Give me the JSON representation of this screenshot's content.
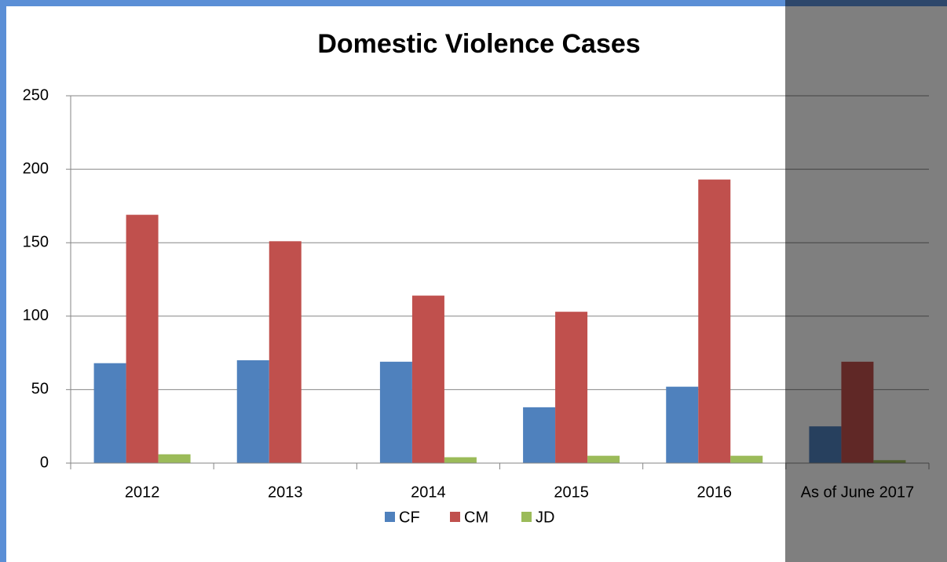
{
  "chart_data": {
    "type": "bar",
    "title": "Domestic Violence Cases",
    "categories": [
      "2012",
      "2013",
      "2014",
      "2015",
      "2016",
      "As of June 2017"
    ],
    "series": [
      {
        "name": "CF",
        "color": "#4f81bd",
        "values": [
          68,
          70,
          69,
          38,
          52,
          25
        ]
      },
      {
        "name": "CM",
        "color": "#c0504d",
        "values": [
          169,
          151,
          114,
          103,
          193,
          69
        ]
      },
      {
        "name": "JD",
        "color": "#9bbb59",
        "values": [
          6,
          0,
          4,
          5,
          5,
          2
        ]
      }
    ],
    "ylim": [
      0,
      250
    ],
    "yticks": [
      0,
      50,
      100,
      150,
      200,
      250
    ],
    "grid": true,
    "legend": "bottom"
  }
}
